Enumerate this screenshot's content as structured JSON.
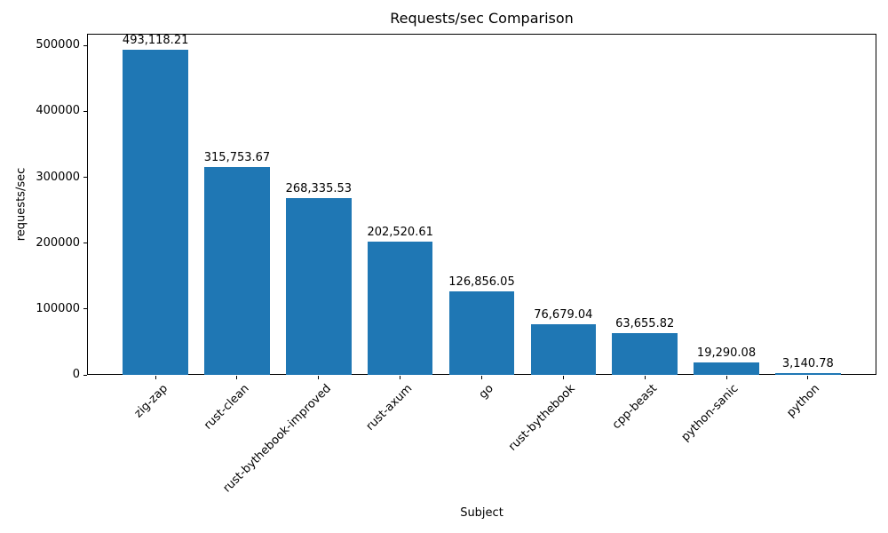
{
  "chart_data": {
    "type": "bar",
    "title": "Requests/sec Comparison",
    "xlabel": "Subject",
    "ylabel": "requests/sec",
    "categories": [
      "zig-zap",
      "rust-clean",
      "rust-bythebook-improved",
      "rust-axum",
      "go",
      "rust-bythebook",
      "cpp-beast",
      "python-sanic",
      "python"
    ],
    "values": [
      493118.21,
      315753.67,
      268335.53,
      202520.61,
      126856.05,
      76679.04,
      63655.82,
      19290.08,
      3140.78
    ],
    "value_labels": [
      "493,118.21",
      "315,753.67",
      "268,335.53",
      "202,520.61",
      "126,856.05",
      "76,679.04",
      "63,655.82",
      "19,290.08",
      "3,140.78"
    ],
    "yticks": [
      0,
      100000,
      200000,
      300000,
      400000,
      500000
    ],
    "ytick_labels": [
      "0",
      "100000",
      "200000",
      "300000",
      "400000",
      "500000"
    ],
    "ylim": [
      0,
      517774
    ],
    "bar_color": "#1f77b4",
    "grid": false,
    "legend": null,
    "xtick_rotation_deg": 45
  }
}
